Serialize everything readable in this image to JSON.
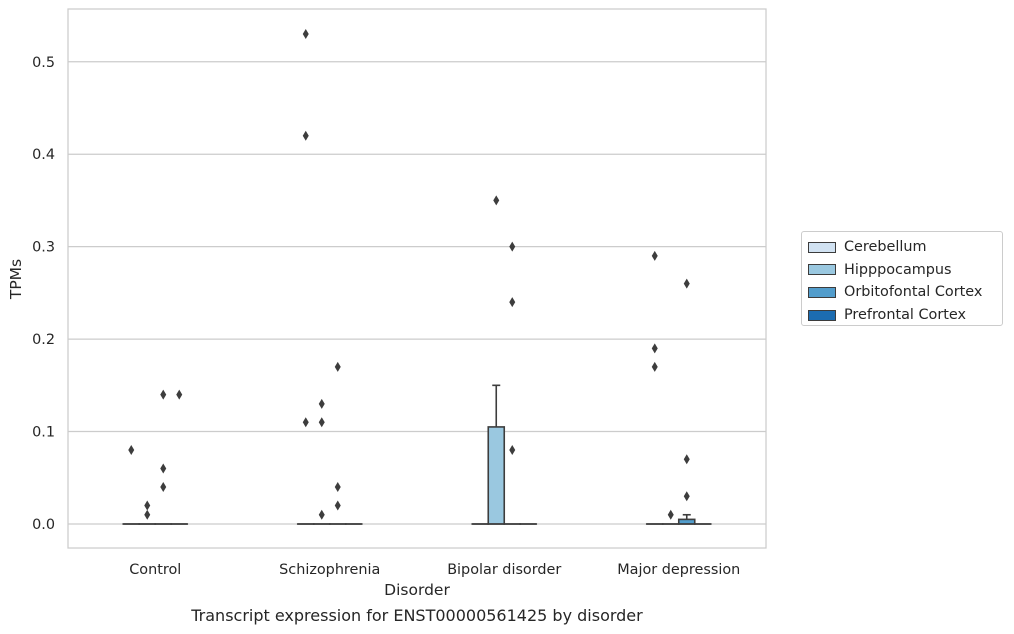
{
  "caption": "Transcript expression for ENST00000561425 by disorder",
  "chart_data": {
    "type": "box",
    "xlabel": "Disorder",
    "ylabel": "TPMs",
    "ylim": [
      -0.026,
      0.555
    ],
    "yticks": [
      0.0,
      0.1,
      0.2,
      0.3,
      0.4,
      0.5
    ],
    "ytick_labels": [
      "0.0",
      "0.1",
      "0.2",
      "0.3",
      "0.4",
      "0.5"
    ],
    "grid": "horizontal",
    "legend_position": "right",
    "categories": [
      "Control",
      "Schizophrenia",
      "Bipolar disorder",
      "Major depression"
    ],
    "series": [
      {
        "name": "Cerebellum",
        "color": "#d1e2f2"
      },
      {
        "name": "Hipppocampus",
        "color": "#9ac8e0"
      },
      {
        "name": "Orbitofontal Cortex",
        "color": "#529dcc"
      },
      {
        "name": "Prefrontal Cortex",
        "color": "#1c6cb1"
      }
    ],
    "boxes": [
      {
        "category": 0,
        "series": 0,
        "q1": 0,
        "median": 0,
        "q3": 0,
        "whislo": 0,
        "whishi": 0,
        "fliers": [
          0.08
        ]
      },
      {
        "category": 0,
        "series": 1,
        "q1": 0,
        "median": 0,
        "q3": 0,
        "whislo": 0,
        "whishi": 0,
        "fliers": [
          0.01,
          0.02
        ]
      },
      {
        "category": 0,
        "series": 2,
        "q1": 0,
        "median": 0,
        "q3": 0,
        "whislo": 0,
        "whishi": 0,
        "fliers": [
          0.04,
          0.06,
          0.14
        ]
      },
      {
        "category": 0,
        "series": 3,
        "q1": 0,
        "median": 0,
        "q3": 0,
        "whislo": 0,
        "whishi": 0,
        "fliers": [
          0.14
        ]
      },
      {
        "category": 1,
        "series": 0,
        "q1": 0,
        "median": 0,
        "q3": 0,
        "whislo": 0,
        "whishi": 0,
        "fliers": [
          0.11,
          0.42,
          0.53
        ]
      },
      {
        "category": 1,
        "series": 1,
        "q1": 0,
        "median": 0,
        "q3": 0,
        "whislo": 0,
        "whishi": 0,
        "fliers": [
          0.01,
          0.11,
          0.13
        ]
      },
      {
        "category": 1,
        "series": 2,
        "q1": 0,
        "median": 0,
        "q3": 0,
        "whislo": 0,
        "whishi": 0,
        "fliers": [
          0.02,
          0.04,
          0.17
        ]
      },
      {
        "category": 1,
        "series": 3,
        "q1": 0,
        "median": 0,
        "q3": 0,
        "whislo": 0,
        "whishi": 0,
        "fliers": []
      },
      {
        "category": 2,
        "series": 0,
        "q1": 0,
        "median": 0,
        "q3": 0,
        "whislo": 0,
        "whishi": 0,
        "fliers": []
      },
      {
        "category": 2,
        "series": 1,
        "q1": 0,
        "median": 0,
        "q3": 0.105,
        "whislo": 0,
        "whishi": 0.15,
        "fliers": [
          0.35
        ]
      },
      {
        "category": 2,
        "series": 2,
        "q1": 0,
        "median": 0,
        "q3": 0,
        "whislo": 0,
        "whishi": 0,
        "fliers": [
          0.08,
          0.24,
          0.3
        ]
      },
      {
        "category": 2,
        "series": 3,
        "q1": 0,
        "median": 0,
        "q3": 0,
        "whislo": 0,
        "whishi": 0,
        "fliers": []
      },
      {
        "category": 3,
        "series": 0,
        "q1": 0,
        "median": 0,
        "q3": 0,
        "whislo": 0,
        "whishi": 0,
        "fliers": [
          0.17,
          0.19,
          0.29
        ]
      },
      {
        "category": 3,
        "series": 1,
        "q1": 0,
        "median": 0,
        "q3": 0,
        "whislo": 0,
        "whishi": 0,
        "fliers": [
          0.01
        ]
      },
      {
        "category": 3,
        "series": 2,
        "q1": 0,
        "median": 0,
        "q3": 0.005,
        "whislo": 0,
        "whishi": 0.01,
        "fliers": [
          0.03,
          0.07,
          0.26
        ]
      },
      {
        "category": 3,
        "series": 3,
        "q1": 0,
        "median": 0,
        "q3": 0,
        "whislo": 0,
        "whishi": 0,
        "fliers": []
      }
    ]
  }
}
